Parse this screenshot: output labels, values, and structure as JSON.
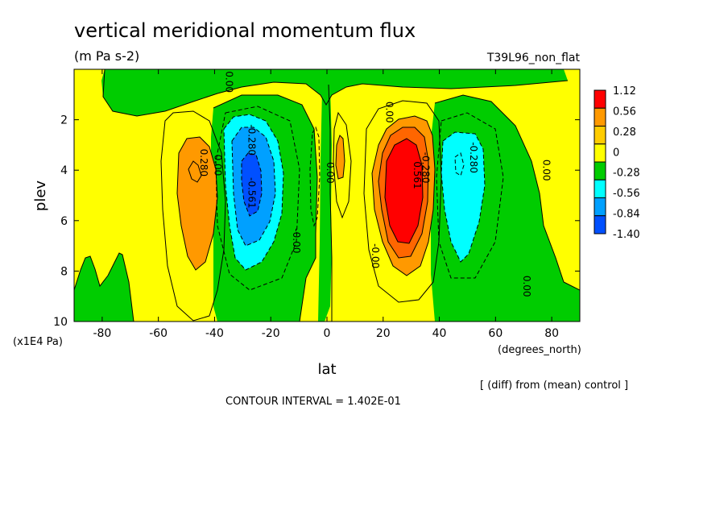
{
  "chart_data": {
    "type": "heatmap",
    "title": "vertical meridional momentum flux",
    "units": "(m Pa s-2)",
    "run_label": "T39L96_non_flat",
    "xlabel": "lat",
    "x_unit": "(degrees_north)",
    "ylabel": "plev",
    "y_unit": "(x1E4 Pa)",
    "xlim": [
      -90,
      90
    ],
    "ylim": [
      10,
      0
    ],
    "x_ticks": [
      -80,
      -60,
      -40,
      -20,
      0,
      20,
      40,
      60,
      80
    ],
    "y_ticks": [
      2,
      4,
      6,
      8,
      10
    ],
    "footnote": "[ (diff) from (mean) control ]",
    "contour_interval_text": "CONTOUR INTERVAL = 1.402E-01",
    "legend": {
      "placement": "right",
      "labels": [
        "1.12",
        "0.56",
        "0.28",
        "0",
        "-0.28",
        "-0.56",
        "-0.84",
        "-1.40"
      ],
      "colors": [
        "#ff0000",
        "#ff9900",
        "#ffcc00",
        "#ffff00",
        "#00cc00",
        "#00ffff",
        "#00a0ff",
        "#0050ff"
      ]
    },
    "contour_labels": [
      {
        "text": "0.00",
        "lat": -36,
        "plev": 0.5
      },
      {
        "text": "0.00",
        "lat": 21,
        "plev": 1.7
      },
      {
        "text": "-0.280",
        "lat": -28,
        "plev": 2.8
      },
      {
        "text": "0.280",
        "lat": -45,
        "plev": 3.7
      },
      {
        "text": "0.00",
        "lat": -40,
        "plev": 3.8
      },
      {
        "text": "-0.561",
        "lat": -28,
        "plev": 4.9
      },
      {
        "text": "0.00",
        "lat": 0,
        "plev": 4.1
      },
      {
        "text": "-0.00",
        "lat": -12,
        "plev": 6.8
      },
      {
        "text": "-0.00",
        "lat": 16,
        "plev": 7.4
      },
      {
        "text": "0.561",
        "lat": 31,
        "plev": 4.2
      },
      {
        "text": "-0.280",
        "lat": 34,
        "plev": 3.9
      },
      {
        "text": "-0.280",
        "lat": 51,
        "plev": 3.5
      },
      {
        "text": "0.00",
        "lat": 77,
        "plev": 4.0
      },
      {
        "text": "0.00",
        "lat": 70,
        "plev": 8.6
      }
    ]
  }
}
